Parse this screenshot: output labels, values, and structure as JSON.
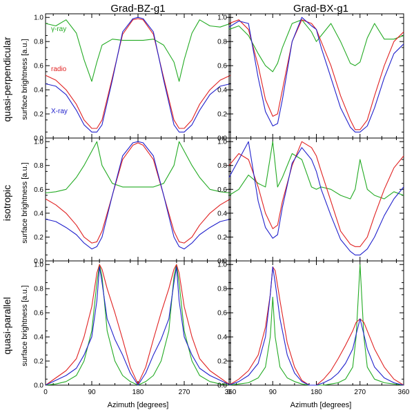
{
  "figure": {
    "column_titles": [
      "Grad-BZ-g1",
      "Grad-BX-g1"
    ],
    "row_titles": [
      "quasi-perpendicular",
      "isotropic",
      "quasi-parallel"
    ],
    "ylabel": "surface brightness [a.u.]",
    "xlabel": "Azimuth [degrees]",
    "legend": {
      "gamma": "γ-ray",
      "radio": "radio",
      "xray": "X-ray"
    },
    "colors": {
      "gamma": "#22aa22",
      "radio": "#e02020",
      "xray": "#2020cc",
      "axis": "#000000"
    }
  },
  "chart_data": [
    {
      "type": "line",
      "panel": "quasi-perpendicular / Grad-BZ-g1",
      "xlim": [
        0,
        360
      ],
      "ylim": [
        0,
        1.03
      ],
      "xticks": [
        0,
        90,
        180,
        270,
        360
      ],
      "yticks": [
        0.0,
        0.2,
        0.4,
        0.6,
        0.8,
        1.0
      ],
      "x": [
        0,
        20,
        40,
        60,
        75,
        90,
        100,
        110,
        130,
        150,
        170,
        180,
        190,
        210,
        230,
        250,
        260,
        270,
        285,
        300,
        320,
        340,
        360
      ],
      "series": [
        {
          "key": "gamma",
          "name": "γ-ray",
          "values": [
            0.95,
            0.93,
            0.98,
            0.87,
            0.65,
            0.47,
            0.63,
            0.77,
            0.82,
            0.81,
            0.81,
            0.81,
            0.81,
            0.82,
            0.77,
            0.63,
            0.47,
            0.65,
            0.87,
            0.98,
            0.93,
            0.92,
            0.95
          ]
        },
        {
          "key": "radio",
          "name": "radio",
          "values": [
            0.52,
            0.48,
            0.4,
            0.28,
            0.15,
            0.08,
            0.08,
            0.15,
            0.5,
            0.86,
            0.98,
            0.99,
            0.98,
            0.86,
            0.5,
            0.15,
            0.08,
            0.08,
            0.15,
            0.28,
            0.4,
            0.48,
            0.52
          ]
        },
        {
          "key": "xray",
          "name": "X-ray",
          "values": [
            0.45,
            0.43,
            0.36,
            0.23,
            0.11,
            0.05,
            0.05,
            0.11,
            0.48,
            0.88,
            0.99,
            1.0,
            0.99,
            0.88,
            0.48,
            0.11,
            0.05,
            0.05,
            0.11,
            0.23,
            0.36,
            0.43,
            0.45
          ]
        }
      ]
    },
    {
      "type": "line",
      "panel": "quasi-perpendicular / Grad-BX-g1",
      "xlim": [
        0,
        360
      ],
      "ylim": [
        0,
        1.03
      ],
      "xticks": [
        0,
        90,
        180,
        270,
        360
      ],
      "yticks": [
        0.0,
        0.2,
        0.4,
        0.6,
        0.8,
        1.0
      ],
      "x": [
        0,
        20,
        40,
        60,
        75,
        90,
        100,
        110,
        130,
        150,
        170,
        180,
        190,
        210,
        230,
        250,
        260,
        270,
        285,
        300,
        320,
        340,
        360
      ],
      "series": [
        {
          "key": "gamma",
          "name": "γ-ray",
          "values": [
            0.9,
            0.93,
            0.85,
            0.7,
            0.6,
            0.55,
            0.62,
            0.75,
            0.95,
            0.98,
            0.88,
            0.8,
            0.85,
            0.95,
            0.8,
            0.62,
            0.6,
            0.63,
            0.83,
            0.95,
            0.82,
            0.82,
            0.85
          ]
        },
        {
          "key": "radio",
          "name": "radio",
          "values": [
            0.95,
            0.98,
            0.9,
            0.6,
            0.32,
            0.18,
            0.2,
            0.4,
            0.8,
            0.98,
            0.95,
            0.9,
            0.8,
            0.6,
            0.35,
            0.15,
            0.07,
            0.07,
            0.15,
            0.35,
            0.6,
            0.8,
            0.88
          ]
        },
        {
          "key": "xray",
          "name": "X-ray",
          "values": [
            0.92,
            0.97,
            0.95,
            0.5,
            0.22,
            0.1,
            0.12,
            0.32,
            0.8,
            1.0,
            0.93,
            0.9,
            0.75,
            0.5,
            0.25,
            0.09,
            0.05,
            0.05,
            0.1,
            0.25,
            0.5,
            0.7,
            0.78
          ]
        }
      ]
    },
    {
      "type": "line",
      "panel": "isotropic / Grad-BZ-g1",
      "xlim": [
        0,
        360
      ],
      "ylim": [
        0,
        1.03
      ],
      "xticks": [
        0,
        90,
        180,
        270,
        360
      ],
      "yticks": [
        0.0,
        0.2,
        0.4,
        0.6,
        0.8,
        1.0
      ],
      "x": [
        0,
        20,
        40,
        60,
        75,
        90,
        100,
        110,
        130,
        150,
        170,
        180,
        190,
        210,
        230,
        250,
        260,
        270,
        285,
        300,
        320,
        340,
        360
      ],
      "series": [
        {
          "key": "gamma",
          "name": "γ-ray",
          "values": [
            0.57,
            0.58,
            0.6,
            0.7,
            0.8,
            0.92,
            1.0,
            0.8,
            0.65,
            0.62,
            0.62,
            0.62,
            0.62,
            0.62,
            0.65,
            0.8,
            1.0,
            0.92,
            0.8,
            0.7,
            0.6,
            0.58,
            0.57
          ]
        },
        {
          "key": "radio",
          "name": "radio",
          "values": [
            0.52,
            0.47,
            0.4,
            0.3,
            0.2,
            0.15,
            0.16,
            0.25,
            0.55,
            0.85,
            0.97,
            0.99,
            0.97,
            0.85,
            0.55,
            0.25,
            0.16,
            0.15,
            0.2,
            0.3,
            0.4,
            0.47,
            0.52
          ]
        },
        {
          "key": "xray",
          "name": "X-ray",
          "values": [
            0.35,
            0.33,
            0.28,
            0.22,
            0.15,
            0.1,
            0.12,
            0.2,
            0.55,
            0.88,
            0.99,
            1.0,
            0.99,
            0.88,
            0.55,
            0.2,
            0.12,
            0.1,
            0.15,
            0.22,
            0.28,
            0.33,
            0.35
          ]
        }
      ]
    },
    {
      "type": "line",
      "panel": "isotropic / Grad-BX-g1",
      "xlim": [
        0,
        360
      ],
      "ylim": [
        0,
        1.03
      ],
      "xticks": [
        0,
        90,
        180,
        270,
        360
      ],
      "yticks": [
        0.0,
        0.2,
        0.4,
        0.6,
        0.8,
        1.0
      ],
      "x": [
        0,
        20,
        40,
        60,
        75,
        90,
        100,
        110,
        130,
        150,
        170,
        180,
        190,
        210,
        230,
        250,
        260,
        270,
        285,
        300,
        320,
        340,
        360
      ],
      "series": [
        {
          "key": "gamma",
          "name": "γ-ray",
          "values": [
            0.55,
            0.6,
            0.72,
            0.65,
            0.62,
            1.0,
            0.62,
            0.7,
            0.9,
            0.85,
            0.62,
            0.6,
            0.62,
            0.6,
            0.55,
            0.52,
            0.6,
            0.85,
            0.6,
            0.55,
            0.52,
            0.58,
            0.55
          ]
        },
        {
          "key": "radio",
          "name": "radio",
          "values": [
            0.8,
            0.9,
            0.85,
            0.62,
            0.4,
            0.27,
            0.3,
            0.5,
            0.8,
            1.0,
            0.95,
            0.88,
            0.75,
            0.5,
            0.25,
            0.14,
            0.12,
            0.12,
            0.2,
            0.38,
            0.6,
            0.78,
            0.88
          ]
        },
        {
          "key": "xray",
          "name": "X-ray",
          "values": [
            0.7,
            0.85,
            1.0,
            0.5,
            0.28,
            0.19,
            0.22,
            0.45,
            0.82,
            0.95,
            0.85,
            0.75,
            0.6,
            0.38,
            0.18,
            0.08,
            0.05,
            0.05,
            0.1,
            0.2,
            0.38,
            0.52,
            0.62
          ]
        }
      ]
    },
    {
      "type": "line",
      "panel": "quasi-parallel / Grad-BZ-g1",
      "xlim": [
        0,
        360
      ],
      "ylim": [
        0,
        1.03
      ],
      "xticks": [
        0,
        90,
        180,
        270,
        360
      ],
      "yticks": [
        0.0,
        0.2,
        0.4,
        0.6,
        0.8,
        1.0
      ],
      "x": [
        0,
        20,
        40,
        60,
        75,
        90,
        100,
        105,
        110,
        120,
        135,
        150,
        165,
        180,
        195,
        210,
        225,
        240,
        250,
        255,
        260,
        270,
        285,
        300,
        320,
        340,
        360
      ],
      "series": [
        {
          "key": "gamma",
          "name": "γ-ray",
          "values": [
            0.0,
            0.01,
            0.03,
            0.08,
            0.2,
            0.45,
            0.85,
            1.0,
            0.9,
            0.45,
            0.2,
            0.08,
            0.03,
            0.0,
            0.03,
            0.08,
            0.2,
            0.45,
            0.9,
            1.0,
            0.85,
            0.45,
            0.2,
            0.08,
            0.03,
            0.01,
            0.0
          ]
        },
        {
          "key": "radio",
          "name": "radio",
          "values": [
            0.0,
            0.06,
            0.12,
            0.22,
            0.4,
            0.65,
            0.93,
            1.0,
            0.96,
            0.8,
            0.6,
            0.38,
            0.15,
            0.01,
            0.15,
            0.38,
            0.6,
            0.8,
            0.96,
            1.0,
            0.93,
            0.65,
            0.4,
            0.22,
            0.12,
            0.06,
            0.0
          ]
        },
        {
          "key": "xray",
          "name": "X-ray",
          "values": [
            0.0,
            0.04,
            0.08,
            0.14,
            0.25,
            0.4,
            0.7,
            0.98,
            0.85,
            0.55,
            0.38,
            0.25,
            0.1,
            0.0,
            0.1,
            0.25,
            0.38,
            0.55,
            0.85,
            0.98,
            0.7,
            0.4,
            0.25,
            0.14,
            0.08,
            0.04,
            0.0
          ]
        }
      ]
    },
    {
      "type": "line",
      "panel": "quasi-parallel / Grad-BX-g1",
      "xlim": [
        0,
        360
      ],
      "ylim": [
        0,
        1.03
      ],
      "xticks": [
        0,
        90,
        180,
        270,
        360
      ],
      "yticks": [
        0.0,
        0.2,
        0.4,
        0.6,
        0.8,
        1.0
      ],
      "x": [
        0,
        20,
        40,
        60,
        75,
        85,
        90,
        95,
        105,
        120,
        135,
        150,
        165,
        180,
        195,
        210,
        225,
        240,
        255,
        262,
        270,
        278,
        285,
        300,
        320,
        340,
        360
      ],
      "series": [
        {
          "key": "gamma",
          "name": "γ-ray",
          "values": [
            0.0,
            0.01,
            0.02,
            0.06,
            0.15,
            0.4,
            0.73,
            0.4,
            0.15,
            0.06,
            0.03,
            0.01,
            0.0,
            0.0,
            0.0,
            0.01,
            0.02,
            0.05,
            0.15,
            0.4,
            1.0,
            0.4,
            0.15,
            0.05,
            0.02,
            0.01,
            0.0
          ]
        },
        {
          "key": "radio",
          "name": "radio",
          "values": [
            0.0,
            0.05,
            0.12,
            0.25,
            0.48,
            0.75,
            0.98,
            0.95,
            0.7,
            0.35,
            0.15,
            0.04,
            0.0,
            0.0,
            0.05,
            0.12,
            0.22,
            0.33,
            0.45,
            0.52,
            0.55,
            0.52,
            0.45,
            0.3,
            0.15,
            0.05,
            0.0
          ]
        },
        {
          "key": "xray",
          "name": "X-ray",
          "values": [
            0.0,
            0.03,
            0.08,
            0.18,
            0.4,
            0.75,
            0.98,
            0.85,
            0.55,
            0.25,
            0.1,
            0.03,
            0.0,
            0.0,
            0.02,
            0.05,
            0.1,
            0.18,
            0.3,
            0.42,
            0.55,
            0.42,
            0.3,
            0.15,
            0.06,
            0.02,
            0.0
          ]
        }
      ]
    }
  ]
}
